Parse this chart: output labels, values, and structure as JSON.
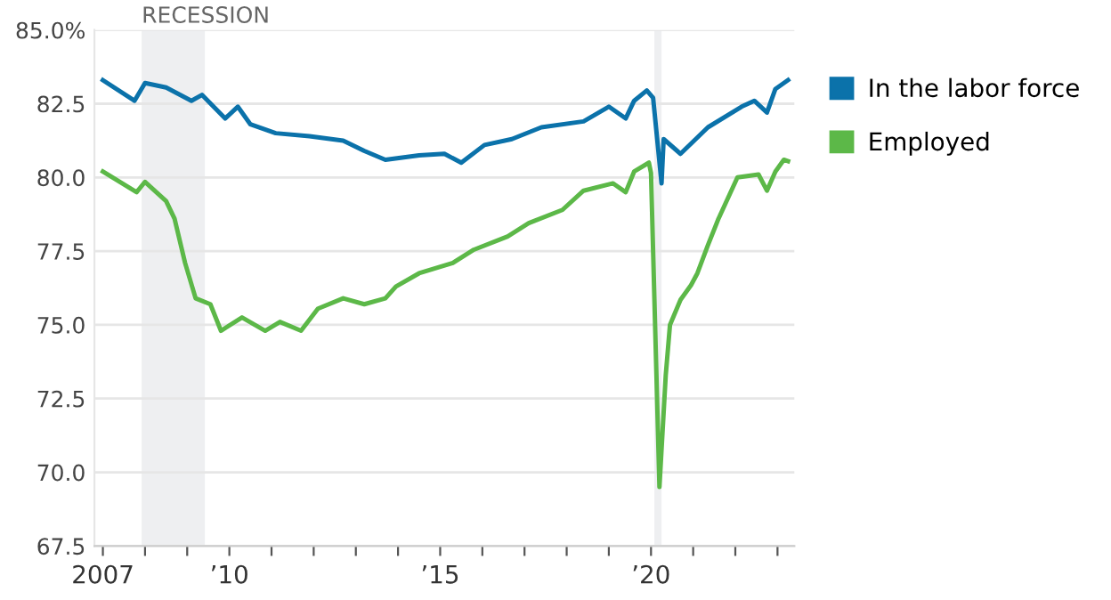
{
  "chart_data": {
    "type": "line",
    "x": [
      2007.0,
      2007.75,
      2008.0,
      2008.5,
      2009.1,
      2009.35,
      2009.9,
      2010.2,
      2010.5,
      2011.1,
      2011.9,
      2012.7,
      2013.2,
      2013.7,
      2014.5,
      2015.1,
      2015.5,
      2016.05,
      2016.7,
      2017.4,
      2018.4,
      2019.0,
      2019.4,
      2019.6,
      2019.9,
      2020.05,
      2020.25,
      2020.3,
      2020.7,
      2021.35,
      2022.15,
      2022.45,
      2022.75,
      2022.95,
      2023.25
    ],
    "series": [
      {
        "name": "In the labor force",
        "color": "#0b72aa",
        "values": [
          83.3,
          82.6,
          83.2,
          83.05,
          82.6,
          82.8,
          82.0,
          82.4,
          81.8,
          81.5,
          81.4,
          81.25,
          80.9,
          80.6,
          80.75,
          80.8,
          80.5,
          81.1,
          81.3,
          81.7,
          81.9,
          82.4,
          82.0,
          82.6,
          82.95,
          82.7,
          79.8,
          81.3,
          80.8,
          81.7,
          82.4,
          82.6,
          82.2,
          83.0,
          83.3
        ]
      },
      {
        "name": "Employed",
        "color": "#5cb848",
        "x": [
          2007.0,
          2007.8,
          2008.0,
          2008.5,
          2008.7,
          2008.95,
          2009.2,
          2009.55,
          2009.8,
          2010.3,
          2010.85,
          2011.2,
          2011.7,
          2012.1,
          2012.7,
          2013.2,
          2013.7,
          2013.95,
          2014.5,
          2015.3,
          2015.8,
          2016.6,
          2017.1,
          2017.9,
          2018.4,
          2019.1,
          2019.4,
          2019.6,
          2019.95,
          2020.0,
          2020.2,
          2020.35,
          2020.45,
          2020.7,
          2020.95,
          2021.1,
          2021.35,
          2021.6,
          2022.05,
          2022.55,
          2022.75,
          2022.95,
          2023.15,
          2023.25
        ],
        "values": [
          80.2,
          79.5,
          79.85,
          79.2,
          78.6,
          77.1,
          75.9,
          75.7,
          74.8,
          75.25,
          74.8,
          75.1,
          74.8,
          75.55,
          75.9,
          75.7,
          75.9,
          76.3,
          76.75,
          77.1,
          77.55,
          78.0,
          78.45,
          78.9,
          79.55,
          79.8,
          79.5,
          80.2,
          80.5,
          80.15,
          69.5,
          73.3,
          75.0,
          75.85,
          76.35,
          76.75,
          77.7,
          78.6,
          80.0,
          80.1,
          79.55,
          80.2,
          80.6,
          80.55
        ]
      }
    ],
    "xlim": [
      2006.8,
      2023.4
    ],
    "xticks": [
      {
        "value": 2007,
        "label": "2007"
      },
      {
        "value": 2008,
        "label": null
      },
      {
        "value": 2009,
        "label": null
      },
      {
        "value": 2010,
        "label": "’10"
      },
      {
        "value": 2011,
        "label": null
      },
      {
        "value": 2012,
        "label": null
      },
      {
        "value": 2013,
        "label": null
      },
      {
        "value": 2014,
        "label": null
      },
      {
        "value": 2015,
        "label": "’15"
      },
      {
        "value": 2016,
        "label": null
      },
      {
        "value": 2017,
        "label": null
      },
      {
        "value": 2018,
        "label": null
      },
      {
        "value": 2019,
        "label": null
      },
      {
        "value": 2020,
        "label": "’20"
      },
      {
        "value": 2021,
        "label": null
      },
      {
        "value": 2022,
        "label": null
      },
      {
        "value": 2023,
        "label": null
      }
    ],
    "ylim": [
      67.5,
      85.0
    ],
    "yticks": [
      67.5,
      {
        "value": 70.0,
        "label": "70.0"
      },
      72.5,
      {
        "value": 75.0,
        "label": "75.0"
      },
      77.5,
      {
        "value": 80.0,
        "label": "80.0"
      },
      82.5,
      {
        "value": 85.0,
        "label": "85.0%"
      }
    ],
    "bands": [
      {
        "axis": "x",
        "from": 2007.92,
        "to": 2009.42,
        "label": "RECESSION",
        "color": "#eeeff1"
      },
      {
        "axis": "x",
        "from": 2020.08,
        "to": 2020.25,
        "label": null,
        "color": "#eeeff1"
      }
    ],
    "grid": "y",
    "legend": "right",
    "line_style": "solid"
  }
}
